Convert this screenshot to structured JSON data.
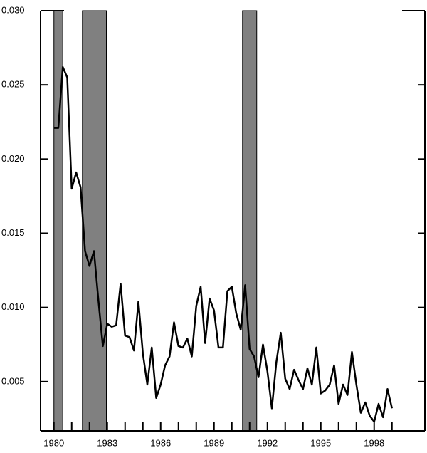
{
  "chart_data": {
    "type": "line",
    "x": [
      1980.0,
      1980.25,
      1980.5,
      1980.75,
      1981.0,
      1981.25,
      1981.5,
      1981.75,
      1982.0,
      1982.25,
      1982.5,
      1982.75,
      1983.0,
      1983.25,
      1983.5,
      1983.75,
      1984.0,
      1984.25,
      1984.5,
      1984.75,
      1985.0,
      1985.25,
      1985.5,
      1985.75,
      1986.0,
      1986.25,
      1986.5,
      1986.75,
      1987.0,
      1987.25,
      1987.5,
      1987.75,
      1988.0,
      1988.25,
      1988.5,
      1988.75,
      1989.0,
      1989.25,
      1989.5,
      1989.75,
      1990.0,
      1990.25,
      1990.5,
      1990.75,
      1991.0,
      1991.25,
      1991.5,
      1991.75,
      1992.0,
      1992.25,
      1992.5,
      1992.75,
      1993.0,
      1993.25,
      1993.5,
      1993.75,
      1994.0,
      1994.25,
      1994.5,
      1994.75,
      1995.0,
      1995.25,
      1995.5,
      1995.75,
      1996.0,
      1996.25,
      1996.5,
      1996.75,
      1997.0,
      1997.25,
      1997.5,
      1997.75,
      1998.0,
      1998.25,
      1998.5,
      1998.75,
      1999.0
    ],
    "series": [
      {
        "color": "#000000",
        "values": [
          0.0221,
          0.0221,
          0.0262,
          0.0255,
          0.018,
          0.0191,
          0.0181,
          0.0138,
          0.0128,
          0.0138,
          0.0105,
          0.0074,
          0.0089,
          0.0087,
          0.0088,
          0.0116,
          0.0081,
          0.008,
          0.0071,
          0.0104,
          0.0069,
          0.0048,
          0.0073,
          0.0039,
          0.0048,
          0.0061,
          0.0067,
          0.009,
          0.0074,
          0.0073,
          0.0079,
          0.0067,
          0.0101,
          0.0114,
          0.0076,
          0.0106,
          0.0098,
          0.0073,
          0.0073,
          0.0111,
          0.0114,
          0.0096,
          0.0085,
          0.0115,
          0.0072,
          0.0067,
          0.0053,
          0.0075,
          0.0057,
          0.0032,
          0.0063,
          0.0083,
          0.0052,
          0.0045,
          0.0058,
          0.0051,
          0.0045,
          0.0059,
          0.0048,
          0.0073,
          0.0042,
          0.0044,
          0.0048,
          0.0061,
          0.0035,
          0.0048,
          0.0041,
          0.007,
          0.0048,
          0.0029,
          0.0036,
          0.0027,
          0.0023,
          0.0035,
          0.0026,
          0.0045,
          0.0032
        ]
      }
    ],
    "shaded_periods": [
      [
        1980.0,
        1980.5
      ],
      [
        1981.6,
        1982.95
      ],
      [
        1990.6,
        1991.4
      ]
    ],
    "shade_color": "#808080",
    "xlim": [
      1979.25,
      2000.85
    ],
    "ylim": [
      0.00168,
      0.03
    ],
    "xticks": [
      1980,
      1983,
      1986,
      1989,
      1992,
      1995,
      1998
    ],
    "xminor": [
      1981,
      1982,
      1984,
      1985,
      1987,
      1988,
      1990,
      1991,
      1993,
      1994,
      1996,
      1997,
      1999
    ],
    "yticks": [
      0.005,
      {
        "value": 0.01,
        "label": "0.010"
      },
      0.015,
      {
        "value": 0.02,
        "label": "0.020"
      },
      0.025,
      {
        "value": 0.03,
        "label": "0.030"
      }
    ]
  }
}
